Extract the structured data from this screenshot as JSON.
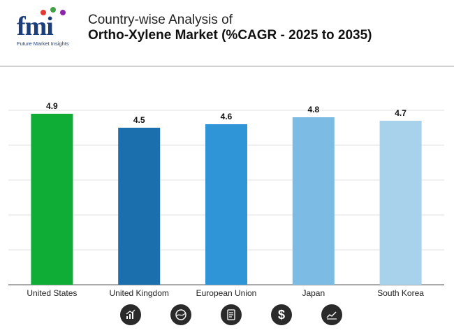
{
  "header": {
    "logo_text": "fmi",
    "logo_subtitle": "Future Market Insights",
    "title_line1": "Country-wise Analysis of",
    "title_line2": "Ortho-Xylene Market (%CAGR - 2025 to 2035)"
  },
  "chart_data": {
    "type": "bar",
    "title": "Country-wise Analysis of Ortho-Xylene Market (%CAGR - 2025 to 2035)",
    "categories": [
      "United States",
      "United Kingdom",
      "European Union",
      "Japan",
      "South Korea"
    ],
    "values": [
      4.9,
      4.5,
      4.6,
      4.8,
      4.7
    ],
    "labels": [
      "4.9",
      "4.5",
      "4.6",
      "4.8",
      "4.7"
    ],
    "colors": [
      "#0fad35",
      "#1b6fad",
      "#2f95d6",
      "#7cbbe3",
      "#a8d1ec"
    ],
    "xlabel": "",
    "ylabel": "",
    "ylim": [
      0,
      5
    ],
    "grid": true
  },
  "footer": {
    "icons": [
      "bar-chart-icon",
      "globe-icon",
      "document-icon",
      "dollar-icon",
      "line-chart-icon"
    ]
  },
  "colors": {
    "accent": "#1c3f7c",
    "icon_bg": "#2a2a2a"
  }
}
